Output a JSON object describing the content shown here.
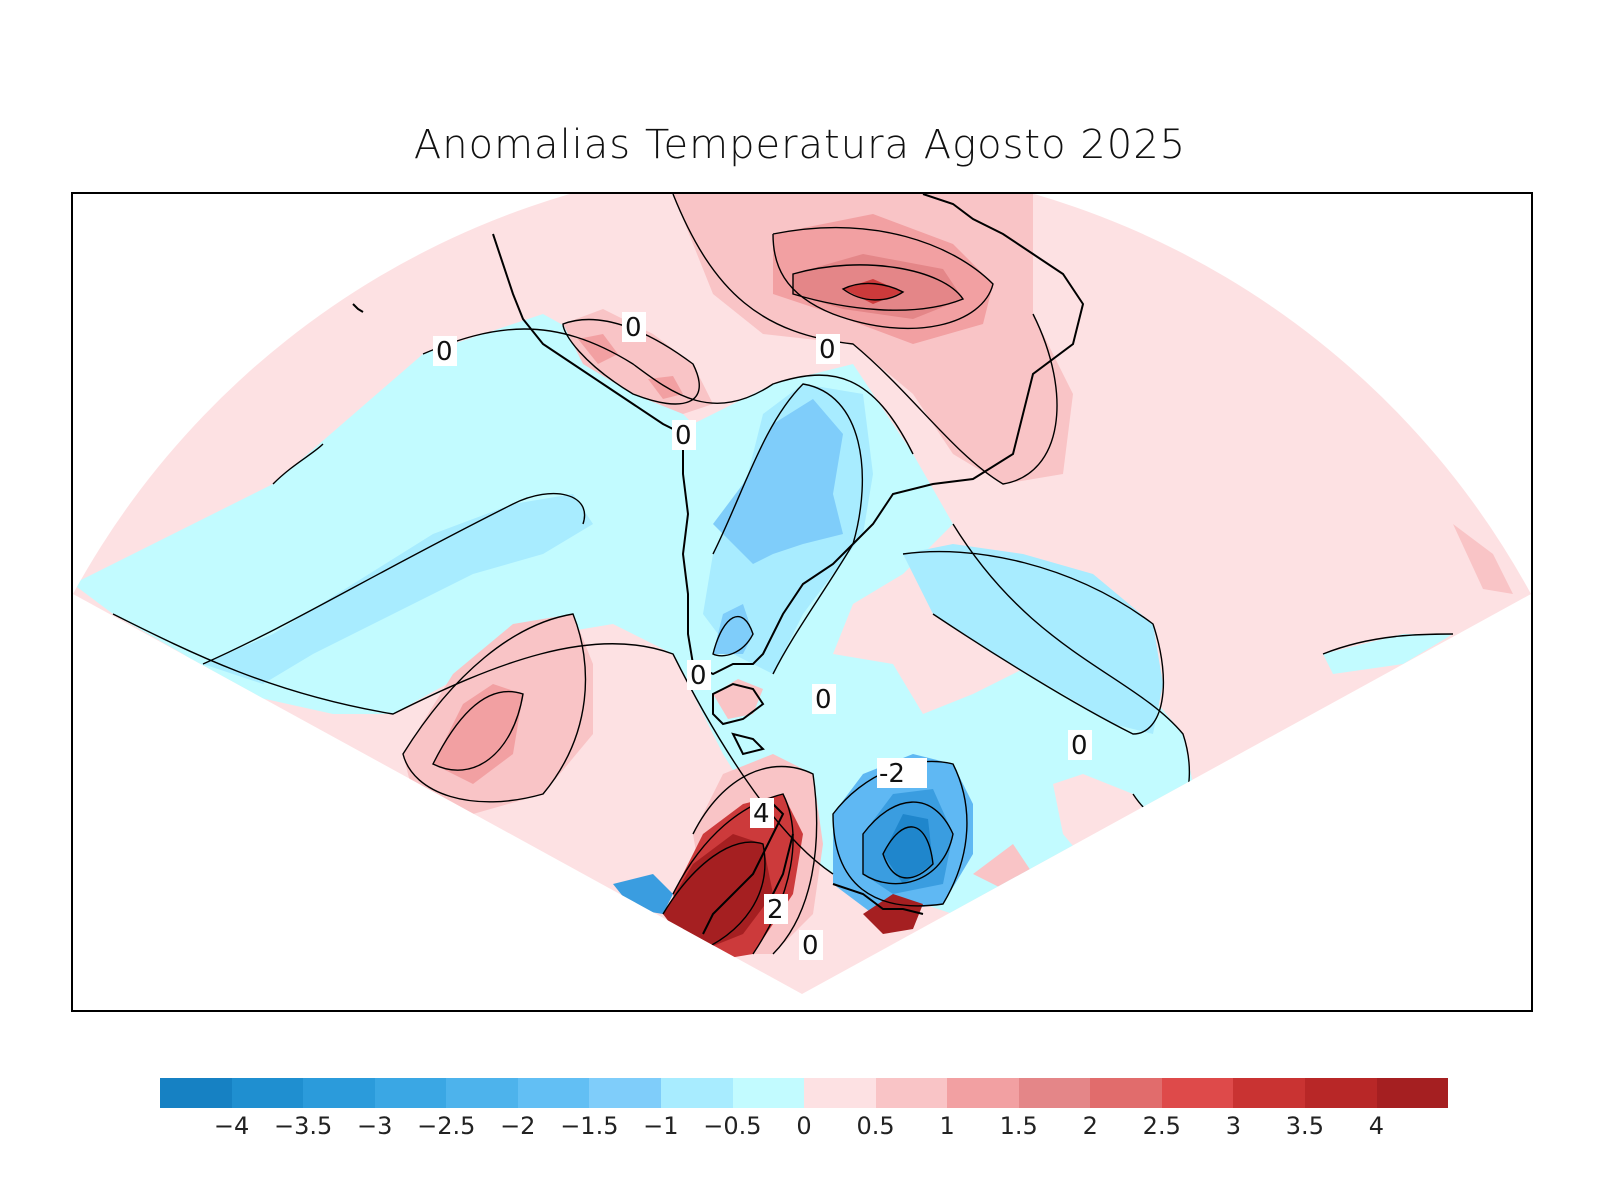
{
  "title": "Anomalias Temperatura Agosto 2025",
  "map": {
    "contour_labels": [
      "0",
      "0",
      "0",
      "0",
      "0",
      "0",
      "0",
      "0",
      "-2",
      "4",
      "2",
      "0"
    ],
    "colors": {
      "neg_0_5": "#c2fbff",
      "neg_1": "#a8ecff",
      "neg_1_5": "#7fcdfa",
      "neg_2": "#5fb8f3",
      "neg_2_5": "#3a9de0",
      "neg_3": "#1f86cc",
      "pos_0_5": "#fde1e3",
      "pos_1": "#f9c4c6",
      "pos_1_5": "#f2a0a2",
      "pos_2": "#e48688",
      "pos_3": "#cc3a3b",
      "pos_4": "#a51f21"
    }
  },
  "colorbar": {
    "colors": [
      "#1681c3",
      "#1f8fd0",
      "#2b9bdb",
      "#3aa7e4",
      "#4db3ec",
      "#62bff4",
      "#7fcdfa",
      "#a8ecff",
      "#c2fbff",
      "#fde1e3",
      "#f9c4c6",
      "#f2a0a2",
      "#e48688",
      "#e16c6c",
      "#de4a4a",
      "#c93332",
      "#b82727",
      "#a51f21"
    ],
    "ticks": [
      "−4",
      "−3.5",
      "−3",
      "−2.5",
      "−2",
      "−1.5",
      "−1",
      "−0.5",
      "0",
      "0.5",
      "1",
      "1.5",
      "2",
      "2.5",
      "3",
      "3.5",
      "4"
    ]
  }
}
